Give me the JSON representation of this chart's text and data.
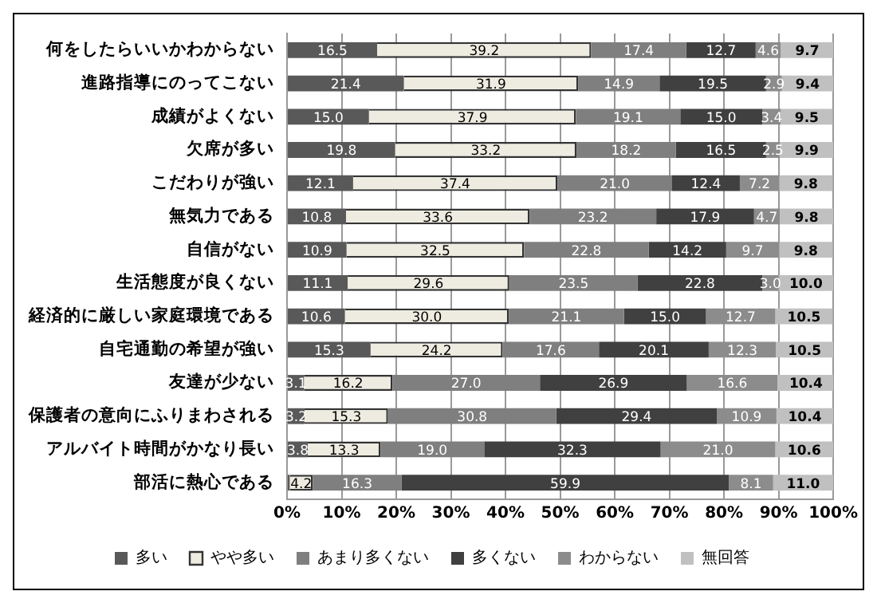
{
  "chart_data": {
    "type": "bar",
    "orientation": "horizontal",
    "stacked": true,
    "grid": "x",
    "legend": "bottom",
    "categories": [
      "何をしたらいいかわからない",
      "進路指導にのってこない",
      "成績がよくない",
      "欠席が多い",
      "こだわりが強い",
      "無気力である",
      "自信がない",
      "生活態度が良くない",
      "経済的に厳しい家庭環境である",
      "自宅通勤の希望が強い",
      "友達が少ない",
      "保護者の意向にふりまわされる",
      "アルバイト時間がかなり長い",
      "部活に熱心である"
    ],
    "xlim": [
      0,
      100
    ],
    "xticks": [
      {
        "value": 0,
        "label": "0%"
      },
      {
        "value": 10,
        "label": "10%"
      },
      {
        "value": 20,
        "label": "20%"
      },
      {
        "value": 30,
        "label": "30%"
      },
      {
        "value": 40,
        "label": "40%"
      },
      {
        "value": 50,
        "label": "50%"
      },
      {
        "value": 60,
        "label": "60%"
      },
      {
        "value": 70,
        "label": "70%"
      },
      {
        "value": 80,
        "label": "80%"
      },
      {
        "value": 90,
        "label": "90%"
      },
      {
        "value": 100,
        "label": "100%"
      }
    ],
    "series": [
      {
        "name": "多い",
        "color": "#595959",
        "values": [
          16.5,
          21.4,
          15.0,
          19.8,
          12.1,
          10.8,
          10.9,
          11.1,
          10.6,
          15.3,
          3.1,
          3.2,
          3.8,
          0.5
        ],
        "value_labels": [
          "16.5",
          "21.4",
          "15.0",
          "19.8",
          "12.1",
          "10.8",
          "10.9",
          "11.1",
          "10.6",
          "15.3",
          "3.1",
          "3.2",
          "3.8",
          null
        ]
      },
      {
        "name": "やや多い",
        "color": "#eeece1",
        "values": [
          39.2,
          31.9,
          37.9,
          33.2,
          37.4,
          33.6,
          32.5,
          29.6,
          30.0,
          24.2,
          16.2,
          15.3,
          13.3,
          4.2
        ],
        "value_labels": [
          "39.2",
          "31.9",
          "37.9",
          "33.2",
          "37.4",
          "33.6",
          "32.5",
          "29.6",
          "30.0",
          "24.2",
          "16.2",
          "15.3",
          "13.3",
          "4.2"
        ]
      },
      {
        "name": "あまり多くない",
        "color": "#7f7f7f",
        "values": [
          17.4,
          14.9,
          19.1,
          18.2,
          21.0,
          23.2,
          22.8,
          23.5,
          21.1,
          17.6,
          27.0,
          30.8,
          19.0,
          16.3
        ],
        "value_labels": [
          "17.4",
          "14.9",
          "19.1",
          "18.2",
          "21.0",
          "23.2",
          "22.8",
          "23.5",
          "21.1",
          "17.6",
          "27.0",
          "30.8",
          "19.0",
          "16.3"
        ]
      },
      {
        "name": "多くない",
        "color": "#404040",
        "values": [
          12.7,
          19.5,
          15.0,
          16.5,
          12.4,
          17.9,
          14.2,
          22.8,
          15.0,
          20.1,
          26.9,
          29.4,
          32.3,
          59.9
        ],
        "value_labels": [
          "12.7",
          "19.5",
          "15.0",
          "16.5",
          "12.4",
          "17.9",
          "14.2",
          "22.8",
          "15.0",
          "20.1",
          "26.9",
          "29.4",
          "32.3",
          "59.9"
        ]
      },
      {
        "name": "わからない",
        "color": "#8c8c8c",
        "values": [
          4.6,
          2.9,
          3.4,
          2.5,
          7.2,
          4.7,
          9.7,
          3.0,
          12.7,
          12.3,
          16.6,
          10.9,
          21.0,
          8.1
        ],
        "value_labels": [
          "4.6",
          "2.9",
          "3.4",
          "2.5",
          "7.2",
          "4.7",
          "9.7",
          "3.0",
          "12.7",
          "12.3",
          "16.6",
          "10.9",
          "21.0",
          "8.1"
        ]
      },
      {
        "name": "無回答",
        "color": "#c0c0c0",
        "values": [
          9.7,
          9.4,
          9.5,
          9.9,
          9.8,
          9.8,
          9.8,
          10.0,
          10.5,
          10.5,
          10.4,
          10.4,
          10.6,
          11.0
        ],
        "value_labels": [
          "9.7",
          "9.4",
          "9.5",
          "9.9",
          "9.8",
          "9.8",
          "9.8",
          "10.0",
          "10.5",
          "10.5",
          "10.4",
          "10.4",
          "10.6",
          "11.0"
        ]
      }
    ]
  }
}
